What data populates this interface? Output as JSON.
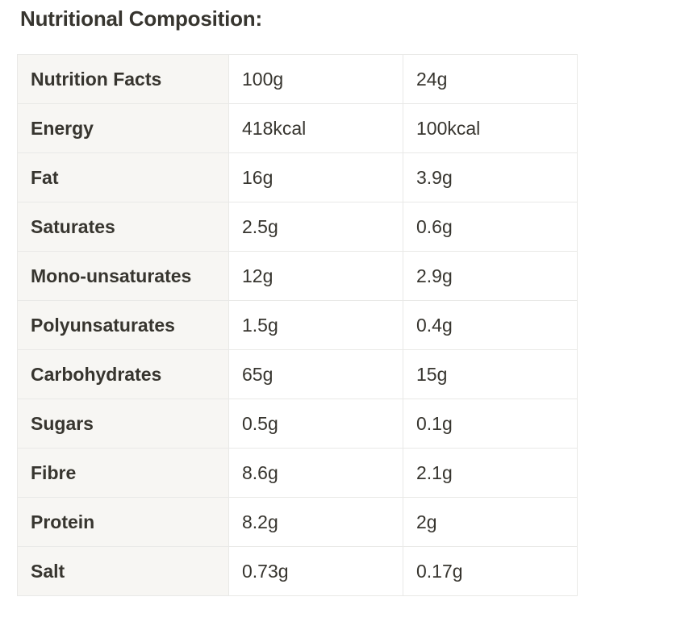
{
  "heading": "Nutritional Composition:",
  "table": {
    "rows": [
      {
        "label": "Nutrition Facts",
        "per_100g": "100g",
        "per_serving": "24g"
      },
      {
        "label": "Energy",
        "per_100g": "418kcal",
        "per_serving": "100kcal"
      },
      {
        "label": "Fat",
        "per_100g": "16g",
        "per_serving": "3.9g"
      },
      {
        "label": "Saturates",
        "per_100g": "2.5g",
        "per_serving": "0.6g"
      },
      {
        "label": "Mono-unsaturates",
        "per_100g": "12g",
        "per_serving": "2.9g"
      },
      {
        "label": "Polyunsaturates",
        "per_100g": "1.5g",
        "per_serving": "0.4g"
      },
      {
        "label": "Carbohydrates",
        "per_100g": "65g",
        "per_serving": "15g"
      },
      {
        "label": "Sugars",
        "per_100g": "0.5g",
        "per_serving": "0.1g"
      },
      {
        "label": "Fibre",
        "per_100g": "8.6g",
        "per_serving": "2.1g"
      },
      {
        "label": "Protein",
        "per_100g": "8.2g",
        "per_serving": "2g"
      },
      {
        "label": "Salt",
        "per_100g": "0.73g",
        "per_serving": "0.17g"
      }
    ]
  },
  "colors": {
    "text": "#37352f",
    "header_column_bg": "#f7f6f3",
    "border": "#e9e9e7"
  }
}
